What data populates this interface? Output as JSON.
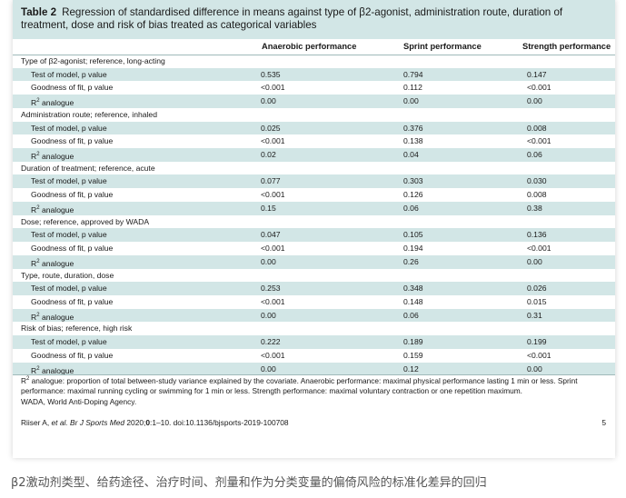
{
  "table": {
    "label": "Table 2",
    "title": "Regression of standardised difference in means against type of β2-agonist, administration route, duration of treatment, dose and risk of bias treated as categorical variables",
    "columns": [
      "Anaerobic performance",
      "Sprint performance",
      "Strength performance"
    ],
    "groups": [
      {
        "label": "Type of β2-agonist; reference, long-acting",
        "rows": [
          {
            "label": "Test of model, p value",
            "values": [
              "0.535",
              "0.794",
              "0.147"
            ]
          },
          {
            "label": "Goodness of fit, p value",
            "values": [
              "<0.001",
              "0.112",
              "<0.001"
            ]
          },
          {
            "label_main": "R",
            "label_sup": "2",
            "label_rest": " analogue",
            "values": [
              "0.00",
              "0.00",
              "0.00"
            ]
          }
        ]
      },
      {
        "label": "Administration route; reference, inhaled",
        "rows": [
          {
            "label": "Test of model, p value",
            "values": [
              "0.025",
              "0.376",
              "0.008"
            ]
          },
          {
            "label": "Goodness of fit, p value",
            "values": [
              "<0.001",
              "0.138",
              "<0.001"
            ]
          },
          {
            "label_main": "R",
            "label_sup": "2",
            "label_rest": " analogue",
            "values": [
              "0.02",
              "0.04",
              "0.06"
            ]
          }
        ]
      },
      {
        "label": "Duration of treatment; reference, acute",
        "rows": [
          {
            "label": "Test of model, p value",
            "values": [
              "0.077",
              "0.303",
              "0.030"
            ]
          },
          {
            "label": "Goodness of fit, p value",
            "values": [
              "<0.001",
              "0.126",
              "0.008"
            ]
          },
          {
            "label_main": "R",
            "label_sup": "2",
            "label_rest": " analogue",
            "values": [
              "0.15",
              "0.06",
              "0.38"
            ]
          }
        ]
      },
      {
        "label": "Dose; reference, approved by WADA",
        "rows": [
          {
            "label": "Test of model, p value",
            "values": [
              "0.047",
              "0.105",
              "0.136"
            ]
          },
          {
            "label": "Goodness of fit, p value",
            "values": [
              "<0.001",
              "0.194",
              "<0.001"
            ]
          },
          {
            "label_main": "R",
            "label_sup": "2",
            "label_rest": " analogue",
            "values": [
              "0.00",
              "0.26",
              "0.00"
            ]
          }
        ]
      },
      {
        "label": "Type, route, duration, dose",
        "rows": [
          {
            "label": "Test of model, p value",
            "values": [
              "0.253",
              "0.348",
              "0.026"
            ]
          },
          {
            "label": "Goodness of fit, p value",
            "values": [
              "<0.001",
              "0.148",
              "0.015"
            ]
          },
          {
            "label_main": "R",
            "label_sup": "2",
            "label_rest": " analogue",
            "values": [
              "0.00",
              "0.06",
              "0.31"
            ]
          }
        ]
      },
      {
        "label": "Risk of bias; reference, high risk",
        "rows": [
          {
            "label": "Test of model, p value",
            "values": [
              "0.222",
              "0.189",
              "0.199"
            ]
          },
          {
            "label": "Goodness of fit, p value",
            "values": [
              "<0.001",
              "0.159",
              "<0.001"
            ]
          },
          {
            "label_main": "R",
            "label_sup": "2",
            "label_rest": " analogue",
            "values": [
              "0.00",
              "0.12",
              "0.00"
            ]
          }
        ]
      }
    ],
    "footnote_sup": "2",
    "footnote_line1": "R",
    "footnote_line1_rest": " analogue: proportion of total between-study variance explained by the covariate. Anaerobic performance: maximal physical performance lasting 1 min or less. Sprint performance: maximal running cycling or swimming for 1 min or less. Strength performance: maximal voluntary contraction or one repetition maximum.",
    "footnote_line2": "WADA, World Anti-Doping Agency."
  },
  "citation": {
    "authors": "Riiser A, ",
    "etal": "et al. Br J Sports Med",
    "year": " 2020;",
    "volume": "0",
    "rest": ":1–10. doi:10.1136/bjsports-2019-100708"
  },
  "page_number": "5",
  "caption": "β2激动剂类型、给药途径、治疗时间、剂量和作为分类变量的偏倚风险的标准化差异的回归",
  "colors": {
    "band": "#d2e6e6",
    "rule": "#9fb9b9",
    "caption_text": "#555555"
  }
}
